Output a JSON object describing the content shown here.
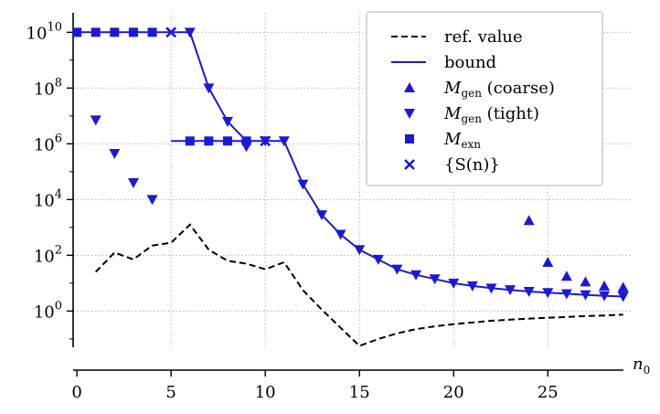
{
  "chart_data": {
    "type": "line",
    "title": "",
    "xlabel": "n",
    "xlabel_subscript": "0",
    "ylabel": "",
    "y_scale": "log",
    "xlim": [
      -0.2,
      29.5
    ],
    "ylim_exponent": [
      -1.3,
      10.7
    ],
    "x_ticks": [
      0,
      5,
      10,
      15,
      20,
      25
    ],
    "x_tick_labels": [
      "0",
      "5",
      "10",
      "15",
      "20",
      "25"
    ],
    "y_ticks_exponent": [
      0,
      2,
      4,
      6,
      8,
      10
    ],
    "y_tick_base": "10",
    "y_tick_exponent_labels": [
      "0",
      "2",
      "4",
      "6",
      "8",
      "10"
    ],
    "grid": true,
    "legend_position": "top-right",
    "series_color": "#1a1ad6",
    "series": [
      {
        "name": "ref. value",
        "style": "dashed-line",
        "x": [
          1,
          2,
          3,
          4,
          5,
          6,
          7,
          8,
          9,
          10,
          11,
          12,
          13,
          14,
          15,
          16,
          17,
          18,
          19,
          20,
          21,
          22,
          23,
          24,
          25,
          26,
          27,
          28,
          29
        ],
        "log10_y": [
          1.4,
          2.1,
          1.85,
          2.35,
          2.45,
          3.1,
          2.2,
          1.8,
          1.7,
          1.5,
          1.75,
          0.75,
          0.05,
          -0.6,
          -1.25,
          -1.0,
          -0.8,
          -0.65,
          -0.55,
          -0.47,
          -0.41,
          -0.35,
          -0.31,
          -0.27,
          -0.24,
          -0.21,
          -0.18,
          -0.16,
          -0.13
        ]
      },
      {
        "name": "bound",
        "style": "solid-line",
        "segments": [
          {
            "x": [
              0,
              1,
              2,
              3,
              4,
              5,
              6,
              7,
              8,
              9
            ],
            "log10_y": [
              10,
              10,
              10,
              10,
              10,
              10,
              10,
              8,
              6.8,
              6.1
            ]
          },
          {
            "x": [
              5,
              6,
              7,
              8,
              9,
              10,
              11,
              12,
              13,
              14,
              15,
              16,
              17,
              18,
              19,
              20,
              21,
              22,
              23,
              24,
              25,
              26,
              27,
              28,
              29
            ],
            "log10_y": [
              6.1,
              6.1,
              6.1,
              6.1,
              6.1,
              6.1,
              6.1,
              4.55,
              3.45,
              2.75,
              2.2,
              1.85,
              1.5,
              1.3,
              1.15,
              1.0,
              0.9,
              0.82,
              0.76,
              0.7,
              0.66,
              0.62,
              0.58,
              0.55,
              0.52
            ]
          }
        ]
      },
      {
        "name": "M_gen (coarse)",
        "label_main": "M",
        "label_sub": "gen",
        "label_tail": " (coarse)",
        "style": "marker-triangle-up",
        "x": [
          24,
          25,
          26,
          27,
          28,
          29
        ],
        "log10_y": [
          3.25,
          1.75,
          1.25,
          1.05,
          0.9,
          0.85
        ]
      },
      {
        "name": "M_gen (tight)",
        "label_main": "M",
        "label_sub": "gen",
        "label_tail": " (tight)",
        "style": "marker-triangle-down",
        "x": [
          1,
          2,
          3,
          4,
          6,
          7,
          8,
          9,
          10,
          11,
          12,
          13,
          14,
          15,
          16,
          17,
          18,
          19,
          20,
          21,
          22,
          23,
          24,
          25,
          26,
          27,
          28,
          29
        ],
        "log10_y": [
          6.85,
          5.65,
          4.6,
          4.0,
          10.0,
          8.0,
          6.8,
          5.9,
          6.1,
          6.1,
          4.55,
          3.45,
          2.75,
          2.2,
          1.85,
          1.5,
          1.3,
          1.15,
          1.0,
          0.9,
          0.82,
          0.76,
          0.7,
          0.66,
          0.62,
          0.58,
          0.55,
          0.52
        ]
      },
      {
        "name": "M_exn",
        "label_main": "M",
        "label_sub": "exn",
        "label_tail": "",
        "style": "marker-square",
        "x": [
          0,
          1,
          2,
          3,
          4,
          6,
          7,
          8,
          9
        ],
        "log10_y": [
          10,
          10,
          10,
          10,
          10,
          6.1,
          6.1,
          6.1,
          6.1
        ]
      },
      {
        "name": "{S(n)}",
        "label_main": "{S(n)}",
        "label_sub": "",
        "label_tail": "",
        "style": "marker-x",
        "x": [
          5,
          10
        ],
        "log10_y": [
          10,
          6.1
        ]
      }
    ]
  }
}
